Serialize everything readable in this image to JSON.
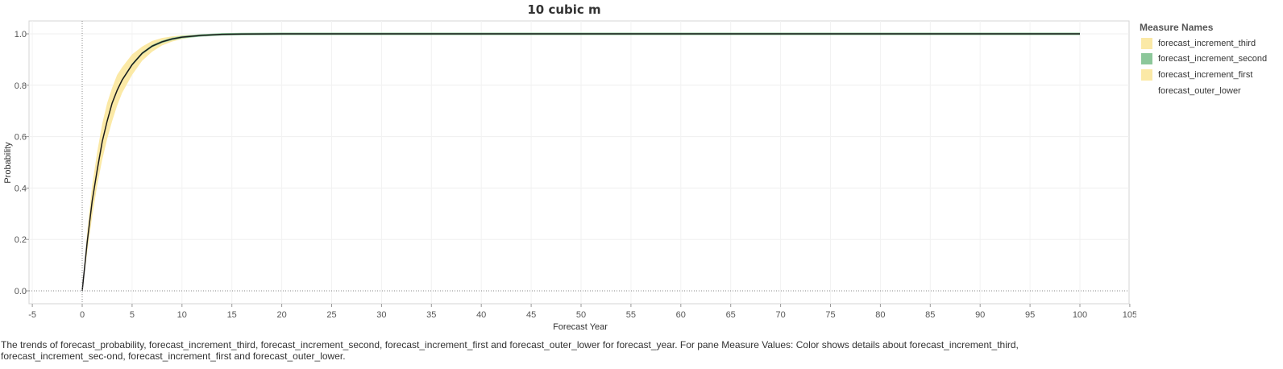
{
  "chart_data": {
    "type": "area",
    "title": "10 cubic m",
    "xlabel": "Forecast Year",
    "ylabel": "Probability",
    "xlim": [
      -5,
      105
    ],
    "ylim": [
      0,
      1.05
    ],
    "x_ticks": [
      "-5",
      "0",
      "5",
      "10",
      "15",
      "20",
      "25",
      "30",
      "35",
      "40",
      "45",
      "50",
      "55",
      "60",
      "65",
      "70",
      "75",
      "80",
      "85",
      "90",
      "95",
      "100",
      "105"
    ],
    "y_ticks": [
      "0.0",
      "0.2",
      "0.4",
      "0.6",
      "0.8",
      "1.0"
    ],
    "grid": true,
    "legend_title": "Measure Names",
    "legend_position": "right",
    "series": [
      {
        "name": "forecast_increment_third",
        "color": "#fbe9a6"
      },
      {
        "name": "forecast_increment_second",
        "color": "#8cc79a"
      },
      {
        "name": "forecast_increment_first",
        "color": "#fbe9a6"
      },
      {
        "name": "forecast_outer_lower",
        "color": "#ffffff"
      }
    ],
    "forecast_probability": {
      "x": [
        0,
        0.5,
        1,
        1.5,
        2,
        2.5,
        3,
        3.5,
        4,
        5,
        6,
        7,
        8,
        9,
        10,
        12,
        14,
        16,
        20,
        30,
        50,
        100
      ],
      "y": [
        0,
        0.19,
        0.35,
        0.47,
        0.58,
        0.66,
        0.73,
        0.78,
        0.82,
        0.88,
        0.924,
        0.952,
        0.969,
        0.98,
        0.987,
        0.994,
        0.998,
        0.999,
        1.0,
        1.0,
        1.0,
        1.0
      ],
      "line_color": "#1a1a1a"
    },
    "band": {
      "x": [
        0,
        0.5,
        1,
        1.5,
        2,
        2.5,
        3,
        3.5,
        4,
        5,
        6,
        7,
        8,
        9,
        10,
        12,
        14,
        16,
        20,
        30,
        50,
        100
      ],
      "lower": [
        0,
        0.15,
        0.29,
        0.41,
        0.51,
        0.59,
        0.66,
        0.72,
        0.77,
        0.84,
        0.895,
        0.93,
        0.955,
        0.97,
        0.98,
        0.992,
        0.997,
        0.999,
        1.0,
        1.0,
        1.0,
        1.0
      ],
      "upper": [
        0,
        0.23,
        0.41,
        0.54,
        0.65,
        0.73,
        0.79,
        0.84,
        0.87,
        0.92,
        0.95,
        0.972,
        0.984,
        0.99,
        0.994,
        0.998,
        1.0,
        1.0,
        1.0,
        1.0,
        1.0,
        1.0
      ]
    }
  },
  "caption": "The trends of forecast_probability, forecast_increment_third, forecast_increment_second, forecast_increment_first and forecast_outer_lower for forecast_year.  For pane Measure Values:  Color shows details about forecast_increment_third, forecast_increment_sec-ond, forecast_increment_first and forecast_outer_lower."
}
